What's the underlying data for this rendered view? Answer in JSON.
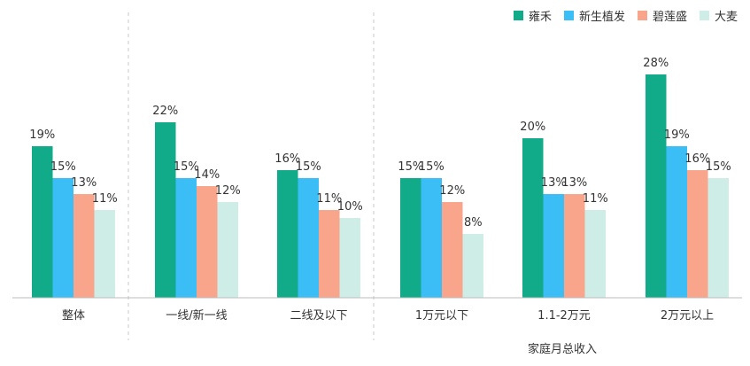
{
  "chart_data": {
    "type": "bar",
    "categories": [
      "整体",
      "一线/新一线",
      "二线及以下",
      "1万元以下",
      "1.1-2万元",
      "2万元以上"
    ],
    "series": [
      {
        "name": "雍禾",
        "color": "#12AB8A",
        "values": [
          19,
          22,
          16,
          15,
          20,
          28
        ]
      },
      {
        "name": "新生植发",
        "color": "#3BBDF5",
        "values": [
          15,
          15,
          15,
          15,
          13,
          19
        ]
      },
      {
        "name": "碧莲盛",
        "color": "#F8A58C",
        "values": [
          13,
          14,
          11,
          12,
          13,
          16
        ]
      },
      {
        "name": "大麦",
        "color": "#CDEDE6",
        "values": [
          11,
          12,
          10,
          8,
          11,
          15
        ]
      }
    ],
    "value_suffix": "%",
    "xlabel": "家庭月总收入",
    "title": "",
    "ylabel": "",
    "ylim": [
      0,
      30
    ],
    "grid": false,
    "legend_position": "top-right",
    "group_dividers_after": [
      0,
      2
    ]
  }
}
